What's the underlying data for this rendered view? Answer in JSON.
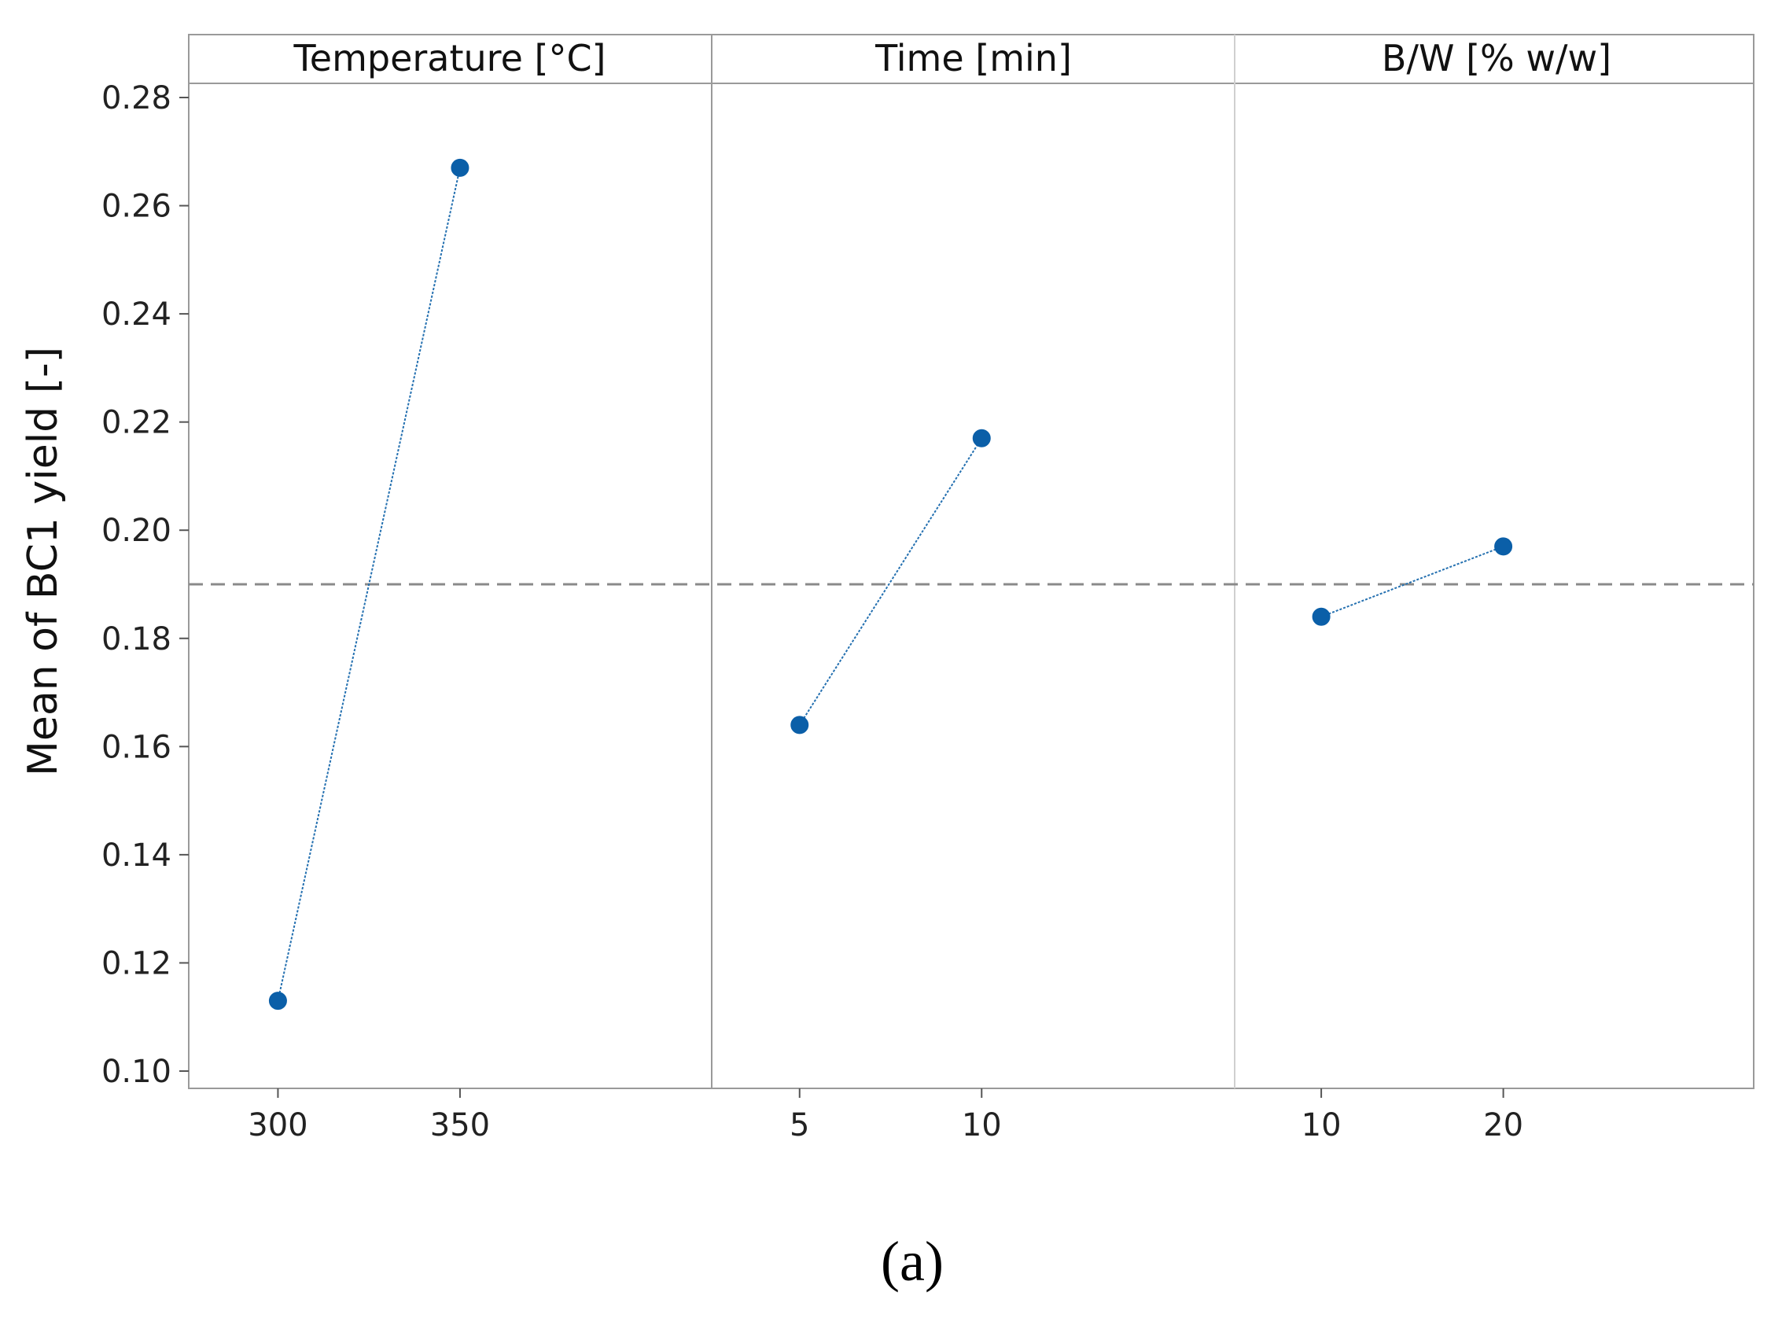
{
  "chart_data": {
    "type": "line",
    "ylabel": "Mean of BC1 yield [-]",
    "ylim": [
      0.1,
      0.28
    ],
    "yticks": [
      0.1,
      0.12,
      0.14,
      0.16,
      0.18,
      0.2,
      0.22,
      0.24,
      0.26,
      0.28
    ],
    "ytick_labels": [
      "0.10",
      "0.12",
      "0.14",
      "0.16",
      "0.18",
      "0.20",
      "0.22",
      "0.24",
      "0.26",
      "0.28"
    ],
    "reference_mean": 0.19,
    "panels": [
      {
        "title": "Temperature [°C]",
        "categories": [
          "300",
          "350"
        ],
        "values": [
          0.113,
          0.267
        ]
      },
      {
        "title": "Time [min]",
        "categories": [
          "5",
          "10"
        ],
        "values": [
          0.164,
          0.217
        ]
      },
      {
        "title": "B/W [% w/w]",
        "categories": [
          "10",
          "20"
        ],
        "values": [
          0.184,
          0.197
        ]
      }
    ],
    "colors": {
      "point": "#0b5fa8",
      "line": "#2470b0",
      "reference": "#8a8a8a"
    }
  },
  "caption": "(a)"
}
